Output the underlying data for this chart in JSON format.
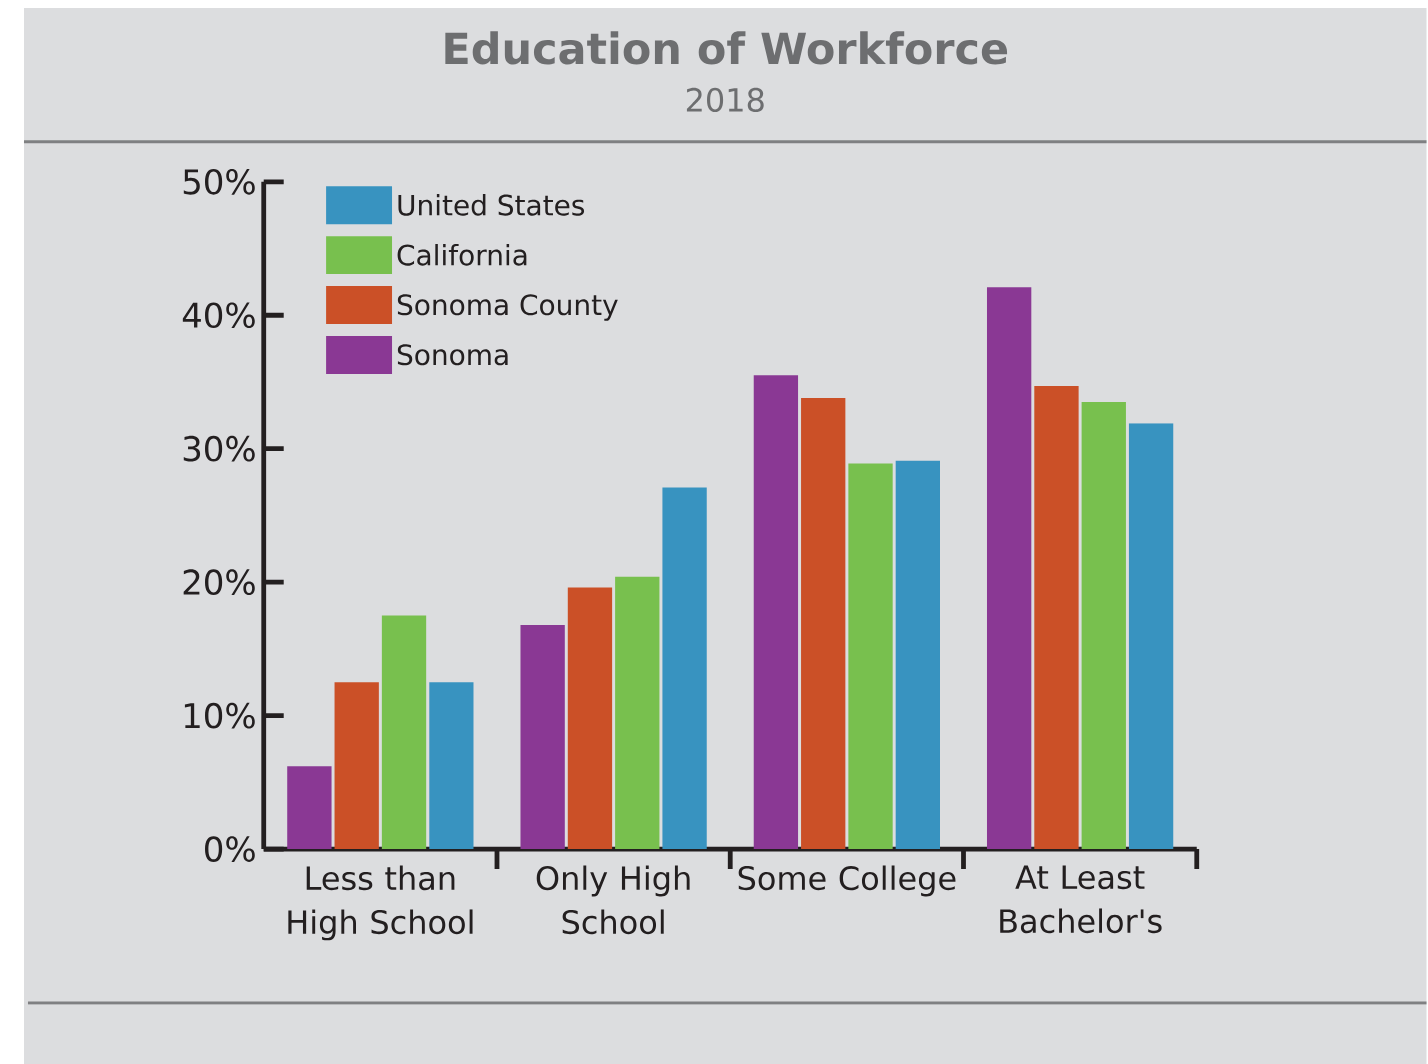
{
  "chart_data": {
    "type": "bar",
    "title": "Education of Workforce",
    "subtitle": "2018",
    "categories": [
      "Less than High School",
      "Only High School",
      "Some College",
      "At Least Bachelor's"
    ],
    "series": [
      {
        "name": "Sonoma",
        "color": "#8a3894",
        "values": [
          6.2,
          16.8,
          35.5,
          42.1
        ]
      },
      {
        "name": "Sonoma County",
        "color": "#cb5027",
        "values": [
          12.5,
          19.6,
          33.8,
          34.7
        ]
      },
      {
        "name": "California",
        "color": "#78c04e",
        "values": [
          17.5,
          20.4,
          28.9,
          33.5
        ]
      },
      {
        "name": "United States",
        "color": "#3893c0",
        "values": [
          12.5,
          27.1,
          29.1,
          31.9
        ]
      }
    ],
    "ylim": [
      0,
      50
    ],
    "yticks": [
      {
        "value": 0,
        "label": "0%"
      },
      {
        "value": 10,
        "label": "10%"
      },
      {
        "value": 20,
        "label": "20%"
      },
      {
        "value": 30,
        "label": "30%"
      },
      {
        "value": 40,
        "label": "40%"
      },
      {
        "value": 50,
        "label": "50%"
      }
    ],
    "legend": "top left"
  }
}
